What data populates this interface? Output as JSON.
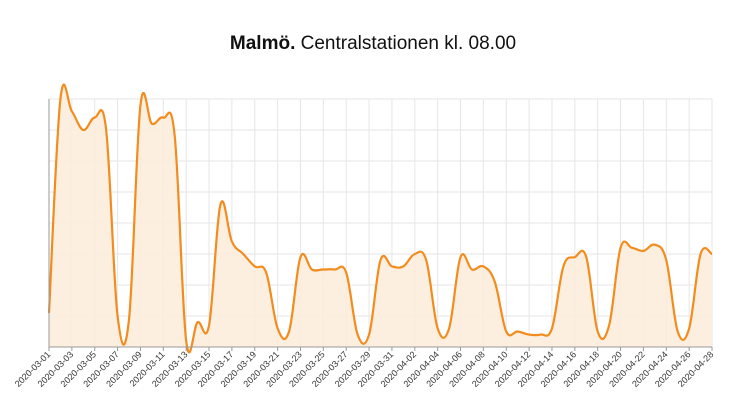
{
  "title": {
    "bold": "Malmö.",
    "rest": " Centralstationen kl. 08.00"
  },
  "colors": {
    "line": "#f28c1e",
    "fill": "#fdecd9",
    "grid": "#e6e6e6"
  },
  "chart_data": {
    "type": "area",
    "title": "Malmö. Centralstationen kl. 08.00",
    "xlabel": "",
    "ylabel": "",
    "grid": true,
    "legend": "none",
    "x_tick_labels": [
      "2020-03-01",
      "2020-03-03",
      "2020-03-05",
      "2020-03-07",
      "2020-03-09",
      "2020-03-11",
      "2020-03-13",
      "2020-03-15",
      "2020-03-17",
      "2020-03-19",
      "2020-03-21",
      "2020-03-23",
      "2020-03-25",
      "2020-03-27",
      "2020-03-29",
      "2020-03-31",
      "2020-04-02",
      "2020-04-04",
      "2020-04-06",
      "2020-04-08",
      "2020-04-10",
      "2020-04-12",
      "2020-04-14",
      "2020-04-16",
      "2020-04-18",
      "2020-04-20",
      "2020-04-22",
      "2020-04-24",
      "2020-04-26",
      "2020-04-28"
    ],
    "ylim": [
      0,
      8
    ],
    "values": [
      1.1,
      8.0,
      7.6,
      7.0,
      7.4,
      7.0,
      1.0,
      0.9,
      7.8,
      7.2,
      7.4,
      6.8,
      0.2,
      0.8,
      0.7,
      4.6,
      3.4,
      3.0,
      2.6,
      2.4,
      0.6,
      0.5,
      2.9,
      2.5,
      2.5,
      2.5,
      2.4,
      0.4,
      0.4,
      2.8,
      2.6,
      2.6,
      3.0,
      2.8,
      0.6,
      0.6,
      2.9,
      2.5,
      2.6,
      2.1,
      0.5,
      0.5,
      0.4,
      0.4,
      0.6,
      2.6,
      2.9,
      2.9,
      0.5,
      0.7,
      3.2,
      3.2,
      3.1,
      3.3,
      2.8,
      0.5,
      0.6,
      3.0,
      3.0
    ]
  }
}
